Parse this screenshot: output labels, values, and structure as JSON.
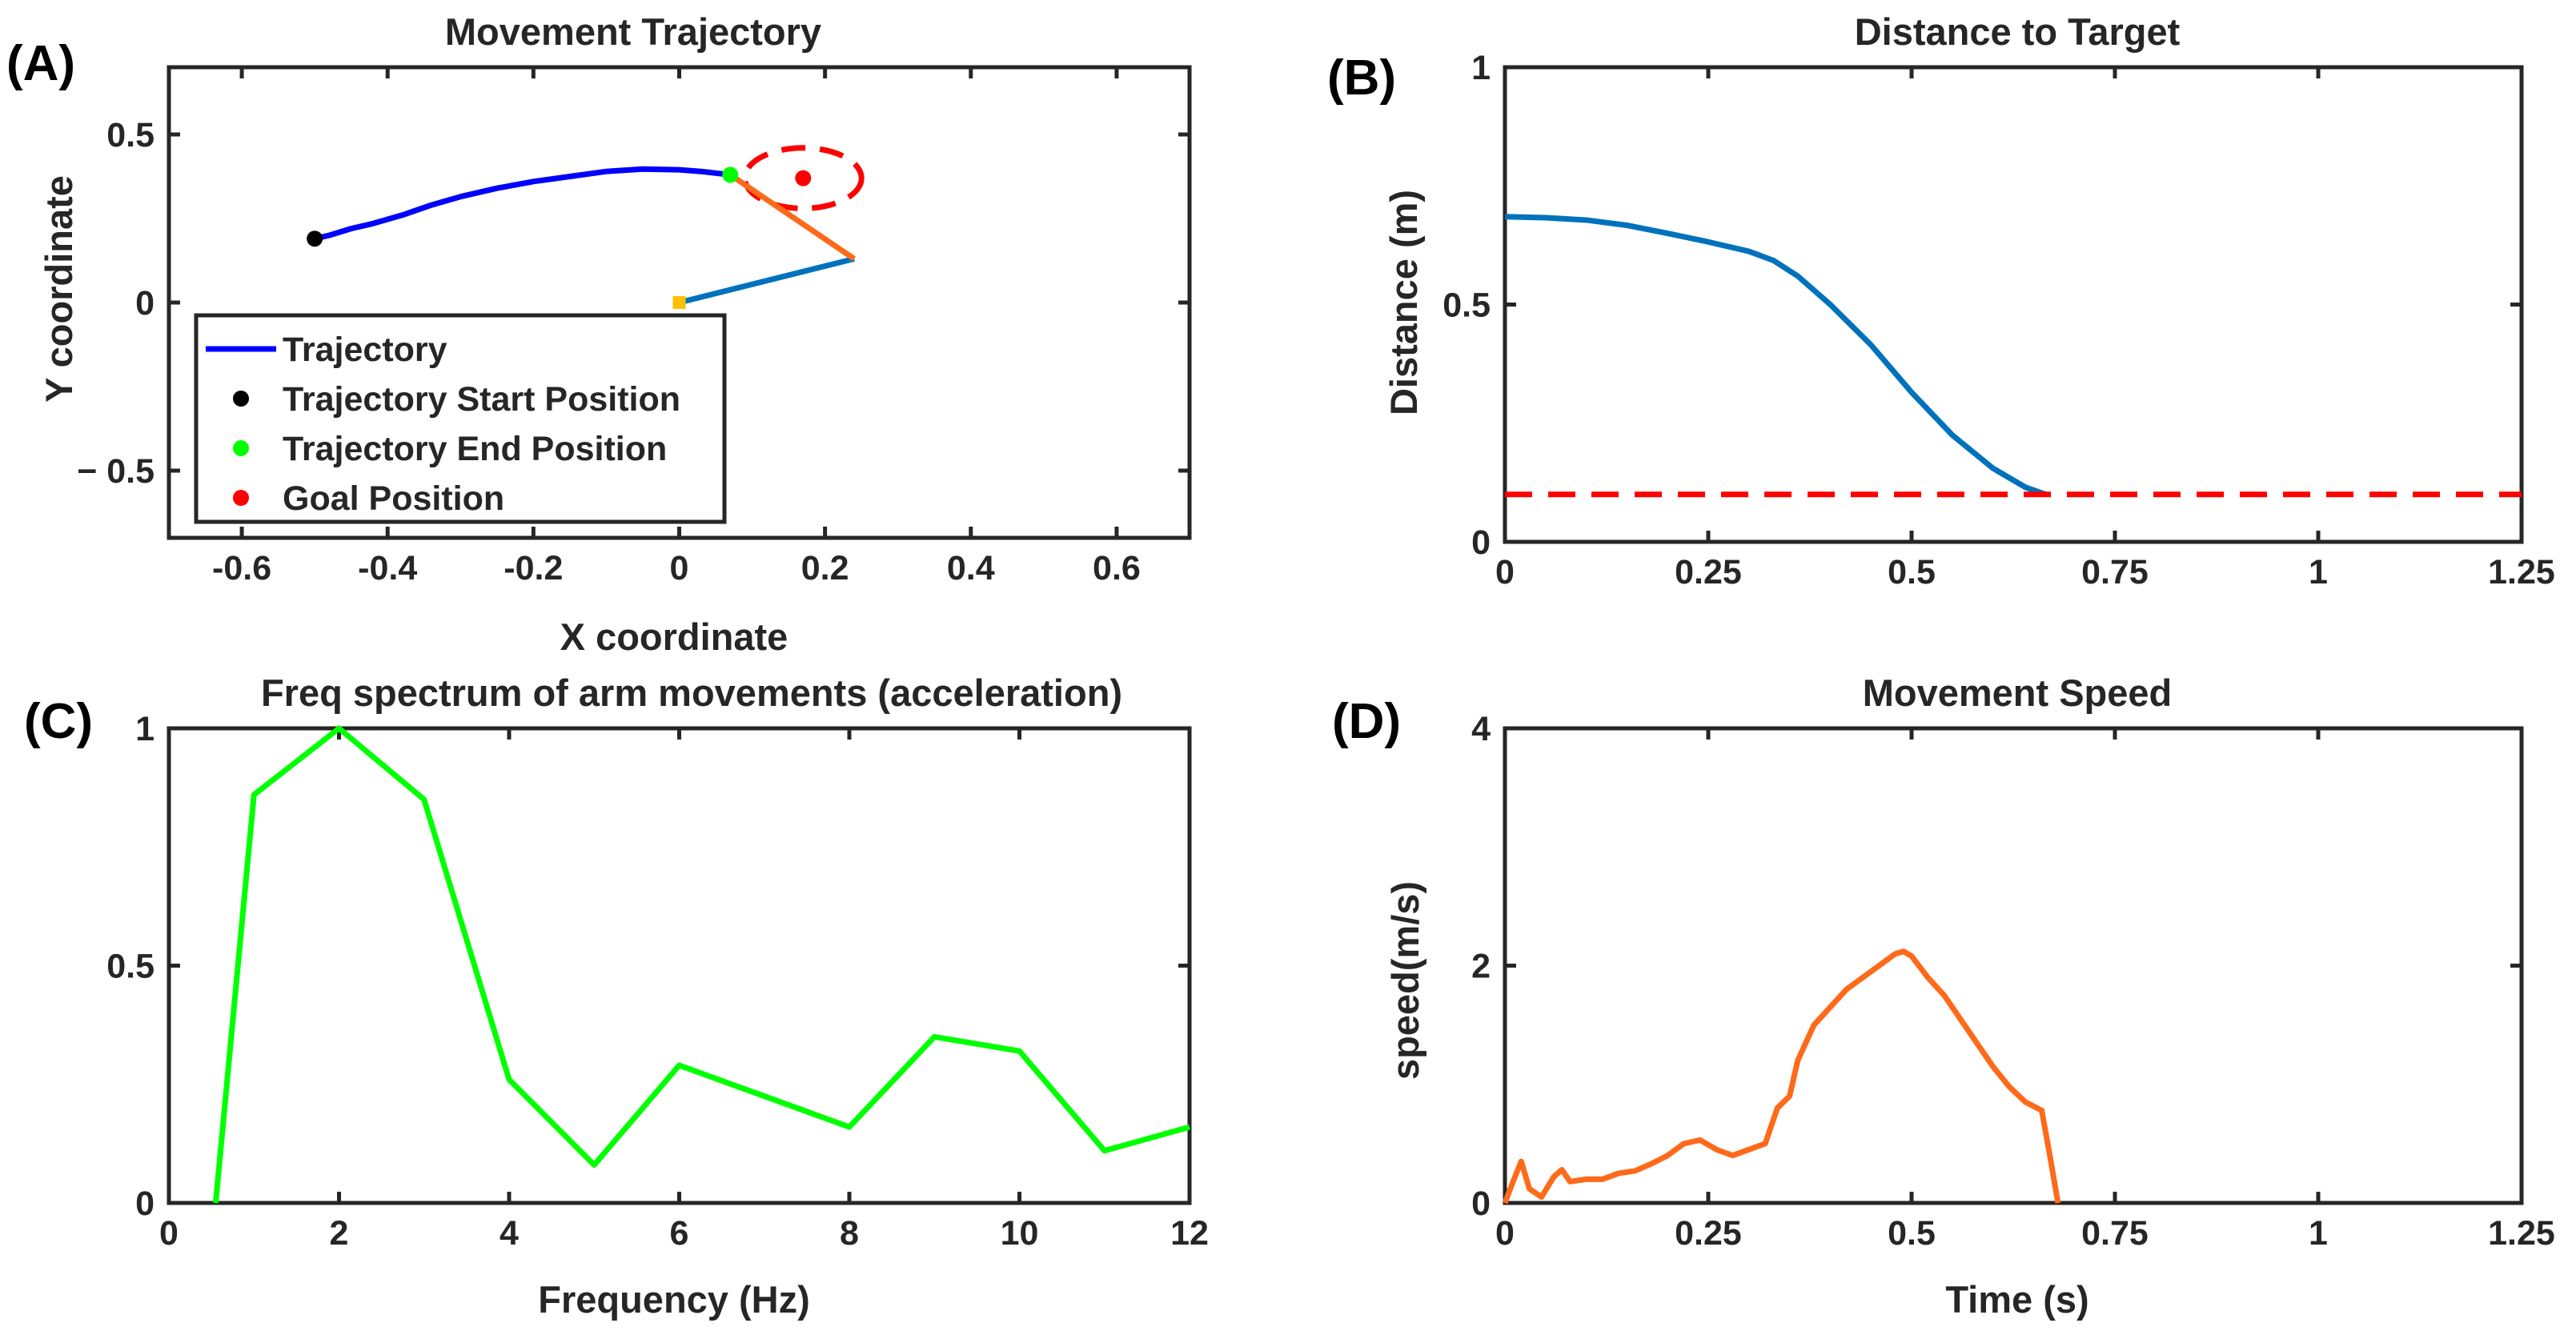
{
  "panels": {
    "a": {
      "label": "(A)"
    },
    "b": {
      "label": "(B)"
    },
    "c": {
      "label": "(C)"
    },
    "d": {
      "label": "(D)"
    }
  },
  "chart_data": [
    {
      "id": "a",
      "type": "line",
      "title": "Movement Trajectory",
      "xlabel": "X coordinate",
      "ylabel": "Y coordinate",
      "xlim": [
        -0.7,
        0.7
      ],
      "ylim": [
        -0.7,
        0.7
      ],
      "xticks": [
        -0.6,
        -0.4,
        -0.2,
        0,
        0.2,
        0.4,
        0.6
      ],
      "xtick_labels": [
        "-0.6",
        "-0.4",
        "-0.2",
        "0",
        "0.2",
        "0.4",
        "0.6"
      ],
      "yticks": [
        0.5,
        0,
        -0.5
      ],
      "ytick_labels": [
        "0.5",
        "0",
        "− 0.5"
      ],
      "grid": false,
      "legend_position": "bottom-left",
      "series": [
        {
          "name": "Trajectory",
          "color": "#0000ff",
          "x": [
            -0.5,
            -0.48,
            -0.45,
            -0.42,
            -0.38,
            -0.34,
            -0.3,
            -0.25,
            -0.2,
            -0.15,
            -0.1,
            -0.05,
            0.0,
            0.03,
            0.05,
            0.07
          ],
          "y": [
            0.19,
            0.2,
            0.22,
            0.235,
            0.26,
            0.29,
            0.315,
            0.34,
            0.36,
            0.375,
            0.39,
            0.397,
            0.395,
            0.39,
            0.385,
            0.38
          ]
        },
        {
          "name": "Trajectory Start Position",
          "color": "#000000",
          "x": [
            -0.5
          ],
          "y": [
            0.19
          ]
        },
        {
          "name": "Trajectory End Position",
          "color": "#00ff00",
          "x": [
            0.07
          ],
          "y": [
            0.38
          ]
        },
        {
          "name": "Goal Position",
          "color": "#ff0000",
          "x": [
            0.17
          ],
          "y": [
            0.37
          ]
        }
      ],
      "arm": {
        "upper": {
          "color": "#0072bd",
          "x": [
            0,
            0.24
          ],
          "y": [
            0,
            0.13
          ]
        },
        "fore": {
          "color": "#ff6a1a",
          "x": [
            0.24,
            0.07
          ],
          "y": [
            0.13,
            0.38
          ]
        },
        "base": {
          "color": "#ffc000",
          "x": 0,
          "y": 0
        }
      },
      "goal_region": {
        "color": "#ff0000",
        "cx": 0.17,
        "cy": 0.37,
        "rx": 0.1,
        "ry": 0.1
      }
    },
    {
      "id": "b",
      "type": "line",
      "title": "Distance to Target",
      "xlabel": "",
      "ylabel": "Distance (m)",
      "xlim": [
        0,
        1.25
      ],
      "ylim": [
        0,
        1
      ],
      "xticks": [
        0,
        0.25,
        0.5,
        0.75,
        1,
        1.25
      ],
      "xtick_labels": [
        "0",
        "0.25",
        "0.5",
        "0.75",
        "1",
        "1.25"
      ],
      "yticks": [
        0,
        0.5,
        1
      ],
      "ytick_labels": [
        "0",
        "0.5",
        "1"
      ],
      "grid": false,
      "series": [
        {
          "color": "#0072bd",
          "x": [
            0,
            0.05,
            0.1,
            0.15,
            0.2,
            0.25,
            0.3,
            0.33,
            0.36,
            0.4,
            0.45,
            0.5,
            0.55,
            0.6,
            0.64,
            0.665
          ],
          "y": [
            0.685,
            0.683,
            0.678,
            0.667,
            0.65,
            0.632,
            0.612,
            0.593,
            0.56,
            0.5,
            0.415,
            0.315,
            0.225,
            0.155,
            0.115,
            0.1
          ]
        },
        {
          "color": "#ff0000",
          "dashed": true,
          "x": [
            0,
            1.25
          ],
          "y": [
            0.1,
            0.1
          ]
        }
      ]
    },
    {
      "id": "c",
      "type": "line",
      "title": "Freq spectrum of arm movements (acceleration)",
      "xlabel": "Frequency (Hz)",
      "ylabel": "",
      "xlim": [
        0,
        12
      ],
      "ylim": [
        0,
        1
      ],
      "xticks": [
        0,
        2,
        4,
        6,
        8,
        10,
        12
      ],
      "xtick_labels": [
        "0",
        "2",
        "4",
        "6",
        "8",
        "10",
        "12"
      ],
      "yticks": [
        0,
        0.5,
        1
      ],
      "ytick_labels": [
        "0",
        "0.5",
        "1"
      ],
      "grid": false,
      "series": [
        {
          "color": "#00ff00",
          "x": [
            0.55,
            1,
            2,
            3,
            4,
            5,
            6,
            8,
            9,
            10,
            11,
            12
          ],
          "y": [
            0,
            0.86,
            1.0,
            0.85,
            0.26,
            0.08,
            0.29,
            0.16,
            0.35,
            0.32,
            0.11,
            0.16
          ]
        }
      ]
    },
    {
      "id": "d",
      "type": "line",
      "title": "Movement Speed",
      "xlabel": "Time (s)",
      "ylabel": "speed(m/s)",
      "xlim": [
        0,
        1.25
      ],
      "ylim": [
        0,
        4
      ],
      "xticks": [
        0,
        0.25,
        0.5,
        0.75,
        1,
        1.25
      ],
      "xtick_labels": [
        "0",
        "0.25",
        "0.5",
        "0.75",
        "1",
        "1.25"
      ],
      "yticks": [
        0,
        2,
        4
      ],
      "ytick_labels": [
        "0",
        "2",
        "4"
      ],
      "grid": false,
      "series": [
        {
          "color": "#ff6a1a",
          "x": [
            0,
            0.01,
            0.02,
            0.03,
            0.045,
            0.06,
            0.07,
            0.08,
            0.1,
            0.12,
            0.14,
            0.16,
            0.18,
            0.2,
            0.22,
            0.24,
            0.26,
            0.28,
            0.3,
            0.32,
            0.335,
            0.35,
            0.36,
            0.38,
            0.4,
            0.42,
            0.44,
            0.46,
            0.48,
            0.49,
            0.5,
            0.52,
            0.54,
            0.56,
            0.58,
            0.6,
            0.62,
            0.64,
            0.66,
            0.67,
            0.68
          ],
          "y": [
            0,
            0.18,
            0.35,
            0.12,
            0.05,
            0.22,
            0.28,
            0.18,
            0.2,
            0.2,
            0.25,
            0.27,
            0.33,
            0.4,
            0.5,
            0.53,
            0.45,
            0.4,
            0.45,
            0.5,
            0.8,
            0.9,
            1.2,
            1.5,
            1.65,
            1.8,
            1.9,
            2.0,
            2.1,
            2.12,
            2.08,
            1.9,
            1.75,
            1.55,
            1.35,
            1.15,
            0.98,
            0.85,
            0.78,
            0.4,
            0
          ]
        }
      ]
    }
  ]
}
